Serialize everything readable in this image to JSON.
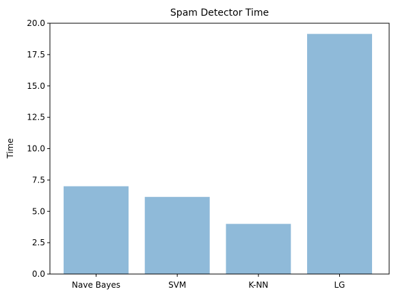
{
  "chart_data": {
    "type": "bar",
    "title": "Spam Detector Time",
    "xlabel": "",
    "ylabel": "Time",
    "categories": [
      "Nave Bayes",
      "SVM",
      "K-NN",
      "LG"
    ],
    "values": [
      7.0,
      6.15,
      4.0,
      19.15
    ],
    "ylim": [
      0,
      20
    ],
    "yticks": [
      0.0,
      2.5,
      5.0,
      7.5,
      10.0,
      12.5,
      15.0,
      17.5,
      20.0
    ],
    "ytick_labels": [
      "0.0",
      "2.5",
      "5.0",
      "7.5",
      "10.0",
      "12.5",
      "15.0",
      "17.5",
      "20.0"
    ],
    "grid": false,
    "legend": "none",
    "bar_color": "#8fbad9"
  }
}
